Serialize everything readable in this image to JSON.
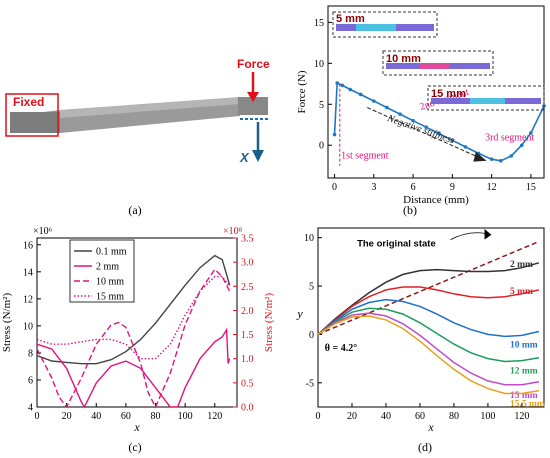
{
  "panel_labels": {
    "a": "(a)",
    "b": "(b)",
    "c": "(c)",
    "d": "(d)"
  },
  "panel_a": {
    "fixed_label": "Fixed",
    "force_label": "Force",
    "axis_label": "X"
  },
  "chart_data": [
    {
      "type": "line",
      "panel": "b",
      "xlabel": "Distance (mm)",
      "ylabel": "Force (N)",
      "xlim": [
        -0.5,
        16
      ],
      "ylim": [
        -4,
        17
      ],
      "xticks": [
        0,
        3,
        6,
        9,
        12,
        15
      ],
      "yticks": [
        0,
        5,
        10,
        15
      ],
      "series": [
        {
          "x": [
            0,
            0.2,
            0.6,
            1.2,
            2,
            3,
            4,
            5,
            6,
            7,
            8,
            9,
            10,
            11,
            12,
            12.7,
            13.5,
            14.3,
            15,
            16
          ],
          "y": [
            1.3,
            7.6,
            7.3,
            6.8,
            6.2,
            5.4,
            4.6,
            3.8,
            3.0,
            2.2,
            1.4,
            0.6,
            -0.2,
            -1.0,
            -1.7,
            -1.9,
            -1.3,
            0.0,
            1.5,
            4.8
          ]
        }
      ],
      "annotations": [
        "1st segment",
        "2nd segment",
        "3rd segment",
        "Negative stiffness"
      ],
      "inset_labels": [
        "5 mm",
        "10 mm",
        "15 mm"
      ]
    },
    {
      "type": "line",
      "panel": "c",
      "xlabel": "x",
      "ylabel": "Stress (N/m²)",
      "ylabel_right": "Stress (N/m²)",
      "exp_left": "×10⁶",
      "exp_right": "×10⁸",
      "xlim": [
        0,
        135
      ],
      "ylim_left": [
        4,
        16.5
      ],
      "ylim_right": [
        0,
        3.5
      ],
      "xticks": [
        0,
        20,
        40,
        60,
        80,
        100,
        120
      ],
      "yticks_left": [
        4,
        6,
        8,
        10,
        12,
        14,
        16
      ],
      "yticks_right": [
        0,
        0.5,
        1.0,
        1.5,
        2.0,
        2.5,
        3.0,
        3.5
      ],
      "series": [
        {
          "name": "0.1 mm",
          "axis": "left",
          "style": "solid",
          "color": "#444444",
          "x": [
            0,
            5,
            10,
            20,
            30,
            40,
            50,
            60,
            70,
            80,
            90,
            100,
            110,
            120,
            125,
            128,
            130
          ],
          "y": [
            7.8,
            7.6,
            7.4,
            7.3,
            7.2,
            7.2,
            7.5,
            8.1,
            9.0,
            10.2,
            11.6,
            13.0,
            14.3,
            15.2,
            14.9,
            13.8,
            13.0
          ]
        },
        {
          "name": "2 mm",
          "axis": "right",
          "style": "solid",
          "color": "#e0137d",
          "x": [
            0,
            10,
            20,
            30,
            32,
            40,
            50,
            60,
            70,
            80,
            90,
            95,
            100,
            110,
            120,
            125,
            128,
            129,
            130
          ],
          "y": [
            1.3,
            1.2,
            0.8,
            0.1,
            0.0,
            0.5,
            0.85,
            0.95,
            0.8,
            0.4,
            0.0,
            0.0,
            0.4,
            1.0,
            1.35,
            1.45,
            1.6,
            0.9,
            1.0
          ]
        },
        {
          "name": "10 mm",
          "axis": "right",
          "style": "dashed",
          "color": "#e0137d",
          "x": [
            0,
            10,
            15,
            20,
            30,
            40,
            50,
            55,
            60,
            70,
            75,
            80,
            90,
            100,
            110,
            120,
            125,
            130
          ],
          "y": [
            1.2,
            0.6,
            0.2,
            0.0,
            0.6,
            1.3,
            1.7,
            1.75,
            1.65,
            0.9,
            0.3,
            0.0,
            0.7,
            1.7,
            2.4,
            2.85,
            2.7,
            2.4
          ]
        },
        {
          "name": "15 mm",
          "axis": "right",
          "style": "dotted",
          "color": "#e0137d",
          "x": [
            0,
            10,
            20,
            30,
            40,
            50,
            60,
            65,
            70,
            80,
            90,
            100,
            110,
            120,
            125,
            130
          ],
          "y": [
            1.4,
            1.3,
            1.3,
            1.35,
            1.4,
            1.4,
            1.3,
            1.15,
            1.0,
            1.0,
            1.3,
            1.9,
            2.4,
            2.7,
            2.7,
            2.5
          ]
        }
      ]
    },
    {
      "type": "line",
      "panel": "d",
      "xlabel": "x",
      "ylabel": "y",
      "xlim": [
        0,
        133
      ],
      "ylim": [
        -7.5,
        11
      ],
      "xticks": [
        0,
        20,
        40,
        60,
        80,
        100,
        120
      ],
      "yticks": [
        -5,
        0,
        5,
        10
      ],
      "angle_label": "θ = 4.2°",
      "annotation": "The original state",
      "series": [
        {
          "name": "The original state",
          "style": "dashed",
          "color": "#8b1a1a",
          "x": [
            0,
            130
          ],
          "y": [
            0,
            9.6
          ]
        },
        {
          "name": "2 mm",
          "color": "#333333",
          "x": [
            0,
            10,
            20,
            30,
            40,
            50,
            60,
            70,
            80,
            90,
            100,
            110,
            120,
            130
          ],
          "y": [
            0,
            1.6,
            3.0,
            4.3,
            5.4,
            6.2,
            6.6,
            6.7,
            6.6,
            6.5,
            6.5,
            6.6,
            6.9,
            7.4
          ]
        },
        {
          "name": "5 mm",
          "color": "#e21f26",
          "x": [
            0,
            10,
            20,
            30,
            40,
            50,
            60,
            70,
            80,
            90,
            100,
            110,
            120,
            130
          ],
          "y": [
            0,
            1.5,
            2.9,
            3.9,
            4.6,
            4.9,
            4.9,
            4.6,
            4.2,
            3.9,
            3.8,
            3.9,
            4.2,
            4.6
          ]
        },
        {
          "name": "10 mm",
          "color": "#1f6fd1",
          "x": [
            0,
            10,
            20,
            30,
            40,
            50,
            60,
            70,
            80,
            90,
            100,
            110,
            120,
            130
          ],
          "y": [
            0,
            1.4,
            2.6,
            3.3,
            3.6,
            3.4,
            2.9,
            2.1,
            1.2,
            0.5,
            0.0,
            -0.2,
            -0.1,
            0.3
          ]
        },
        {
          "name": "12 mm",
          "color": "#1e9c5a",
          "x": [
            0,
            10,
            20,
            30,
            40,
            50,
            60,
            70,
            80,
            90,
            100,
            110,
            120,
            130
          ],
          "y": [
            0,
            1.3,
            2.3,
            2.7,
            2.6,
            2.1,
            1.2,
            0.1,
            -1.0,
            -1.9,
            -2.5,
            -2.8,
            -2.7,
            -2.4
          ]
        },
        {
          "name": "15 mm",
          "color": "#c04cc8",
          "x": [
            0,
            10,
            20,
            30,
            40,
            50,
            60,
            70,
            80,
            90,
            100,
            110,
            120,
            130
          ],
          "y": [
            0,
            1.2,
            2.0,
            2.2,
            1.9,
            1.1,
            -0.1,
            -1.5,
            -2.9,
            -4.0,
            -4.8,
            -5.2,
            -5.2,
            -4.9
          ]
        },
        {
          "name": "15.5 mm",
          "color": "#e6a11a",
          "x": [
            0,
            10,
            20,
            30,
            40,
            50,
            60,
            70,
            80,
            90,
            100,
            110,
            120,
            130
          ],
          "y": [
            0,
            1.1,
            1.8,
            1.9,
            1.5,
            0.6,
            -0.7,
            -2.2,
            -3.6,
            -4.8,
            -5.6,
            -6.1,
            -6.1,
            -5.8
          ]
        }
      ]
    }
  ]
}
